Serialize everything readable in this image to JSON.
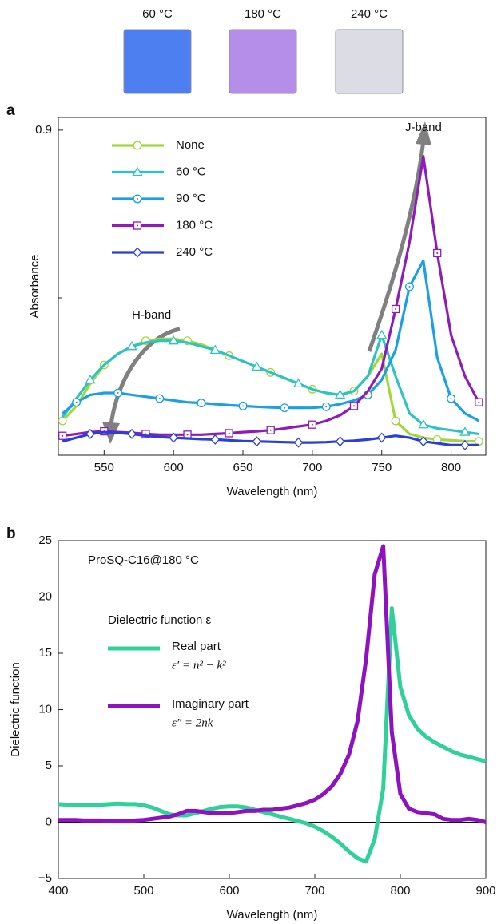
{
  "photos": [
    {
      "label": "60 °C",
      "color": "#4d7ff0"
    },
    {
      "label": "180 °C",
      "color": "#b48ee8"
    },
    {
      "label": "240 °C",
      "color": "#dcdce4"
    }
  ],
  "chart_data": [
    {
      "type": "line",
      "panel": "a",
      "xlabel": "Wavelength (nm)",
      "ylabel": "Absorbance",
      "x": [
        520,
        530,
        540,
        550,
        560,
        570,
        580,
        590,
        600,
        610,
        620,
        630,
        640,
        650,
        660,
        670,
        680,
        690,
        700,
        710,
        720,
        730,
        740,
        750,
        760,
        770,
        780,
        790,
        800,
        810,
        820
      ],
      "xlim": [
        517,
        825
      ],
      "xticks": [
        550,
        600,
        650,
        700,
        750,
        800
      ],
      "ylim": [
        0.028,
        0.934
      ],
      "yticks": [
        0.9
      ],
      "yminor_ticks": [
        0.45
      ],
      "legend": "upper-left",
      "annotations": [
        {
          "text": "J-band"
        },
        {
          "text": "H-band"
        }
      ],
      "series": [
        {
          "name": "None",
          "color": "#a3d63c",
          "marker": "circle",
          "values": [
            0.12,
            0.16,
            0.22,
            0.27,
            0.3,
            0.32,
            0.335,
            0.34,
            0.34,
            0.335,
            0.325,
            0.31,
            0.295,
            0.28,
            0.265,
            0.25,
            0.235,
            0.22,
            0.205,
            0.195,
            0.19,
            0.2,
            0.24,
            0.3,
            0.12,
            0.085,
            0.075,
            0.07,
            0.068,
            0.066,
            0.065
          ]
        },
        {
          "name": "60 °C",
          "color": "#2ec3c3",
          "marker": "triangle",
          "values": [
            0.13,
            0.18,
            0.23,
            0.27,
            0.3,
            0.32,
            0.33,
            0.335,
            0.335,
            0.33,
            0.32,
            0.31,
            0.295,
            0.28,
            0.265,
            0.25,
            0.235,
            0.22,
            0.205,
            0.195,
            0.19,
            0.2,
            0.24,
            0.35,
            0.24,
            0.14,
            0.11,
            0.1,
            0.095,
            0.09,
            0.085
          ]
        },
        {
          "name": "90 °C",
          "color": "#1b9fe6",
          "marker": "dot-circle",
          "values": [
            0.14,
            0.17,
            0.19,
            0.195,
            0.195,
            0.19,
            0.185,
            0.18,
            0.175,
            0.17,
            0.168,
            0.165,
            0.162,
            0.16,
            0.158,
            0.156,
            0.155,
            0.155,
            0.155,
            0.158,
            0.165,
            0.175,
            0.19,
            0.23,
            0.31,
            0.48,
            0.55,
            0.29,
            0.18,
            0.14,
            0.12
          ]
        },
        {
          "name": "180 °C",
          "color": "#8e1db8",
          "marker": "dot-square",
          "values": [
            0.08,
            0.085,
            0.09,
            0.092,
            0.09,
            0.088,
            0.085,
            0.083,
            0.083,
            0.083,
            0.083,
            0.085,
            0.087,
            0.09,
            0.092,
            0.095,
            0.1,
            0.105,
            0.11,
            0.12,
            0.135,
            0.16,
            0.2,
            0.26,
            0.42,
            0.6,
            0.83,
            0.57,
            0.35,
            0.24,
            0.17
          ]
        },
        {
          "name": "240 °C",
          "color": "#2b3fd6",
          "marker": "diamond",
          "values": [
            0.065,
            0.075,
            0.085,
            0.09,
            0.088,
            0.085,
            0.08,
            0.077,
            0.075,
            0.073,
            0.071,
            0.07,
            0.068,
            0.066,
            0.065,
            0.064,
            0.063,
            0.062,
            0.062,
            0.063,
            0.065,
            0.067,
            0.07,
            0.075,
            0.08,
            0.075,
            0.065,
            0.06,
            0.055,
            0.055,
            0.055
          ]
        }
      ]
    },
    {
      "type": "line",
      "panel": "b",
      "xlabel": "Wavelength (nm)",
      "ylabel": "Dielectric function",
      "annotation": "ProSQ-C16@180 °C",
      "legend_title": "Dielectric function ε",
      "zero_line": true,
      "x": [
        400,
        410,
        420,
        430,
        440,
        450,
        460,
        470,
        480,
        490,
        500,
        510,
        520,
        530,
        540,
        550,
        560,
        570,
        580,
        590,
        600,
        610,
        620,
        630,
        640,
        650,
        660,
        670,
        680,
        690,
        700,
        710,
        720,
        730,
        740,
        750,
        760,
        770,
        780,
        790,
        800,
        810,
        820,
        830,
        840,
        850,
        860,
        870,
        880,
        890,
        900
      ],
      "xlim": [
        400,
        900
      ],
      "xticks": [
        400,
        500,
        600,
        700,
        800,
        900
      ],
      "ylim": [
        -5,
        25
      ],
      "yticks": [
        {
          "value": -5,
          "label": "−5"
        },
        0,
        5,
        10,
        15,
        20,
        25
      ],
      "series": [
        {
          "name": "Real part",
          "formula": "ε′ = n² − k²",
          "color": "#2fd199",
          "values": [
            1.6,
            1.55,
            1.5,
            1.5,
            1.5,
            1.55,
            1.6,
            1.65,
            1.6,
            1.6,
            1.5,
            1.3,
            1.0,
            0.7,
            0.6,
            0.6,
            0.8,
            1.0,
            1.2,
            1.35,
            1.4,
            1.4,
            1.3,
            1.1,
            0.9,
            0.7,
            0.5,
            0.3,
            0.1,
            -0.1,
            -0.4,
            -0.8,
            -1.3,
            -1.9,
            -2.6,
            -3.2,
            -3.5,
            -1.5,
            3,
            19,
            12,
            9.5,
            8.3,
            7.6,
            7.1,
            6.7,
            6.3,
            6.0,
            5.8,
            5.6,
            5.4
          ]
        },
        {
          "name": "Imaginary part",
          "formula": "ε″ = 2nk",
          "color": "#8f12c0",
          "values": [
            0.2,
            0.2,
            0.2,
            0.15,
            0.15,
            0.15,
            0.1,
            0.1,
            0.1,
            0.15,
            0.2,
            0.3,
            0.4,
            0.5,
            0.7,
            1.0,
            1.0,
            0.9,
            0.8,
            0.8,
            0.8,
            0.9,
            1.0,
            1.0,
            1.1,
            1.1,
            1.2,
            1.3,
            1.5,
            1.7,
            2.0,
            2.5,
            3.2,
            4.3,
            6.0,
            9.0,
            14.5,
            22,
            24.5,
            8,
            2.5,
            1.2,
            0.9,
            0.8,
            0.7,
            0.3,
            0.2,
            0.2,
            0.3,
            0.2,
            0.0
          ]
        }
      ]
    }
  ]
}
